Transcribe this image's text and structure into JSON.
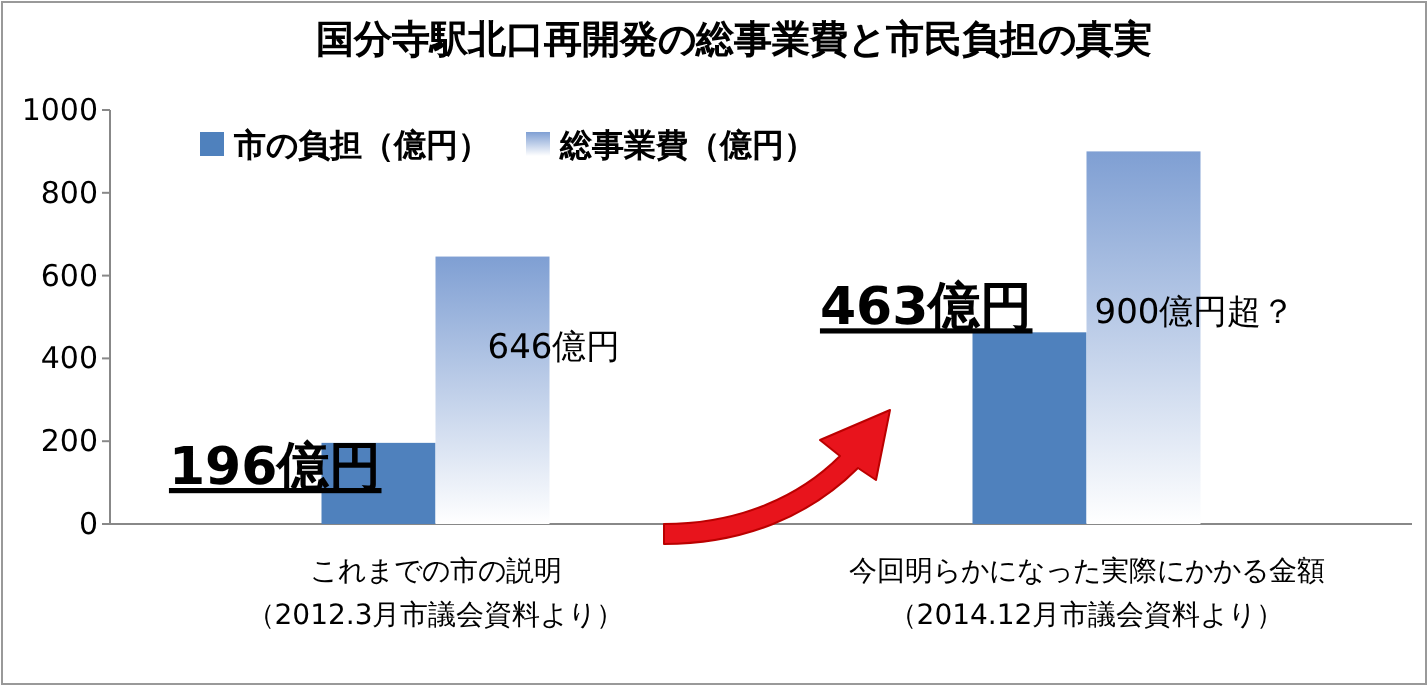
{
  "chart_data": {
    "type": "bar",
    "title": "国分寺駅北口再開発の総事業費と市民負担の真実",
    "categories": [
      "これまでの市の説明（2012.3月市議会資料より）",
      "今回明らかになった実際にかかる金額（2014.12月市議会資料より）"
    ],
    "series": [
      {
        "name": "市の負担（億円）",
        "color": "#4f81bd",
        "values": [
          196,
          463
        ],
        "value_labels": [
          "196億円",
          "463億円"
        ]
      },
      {
        "name": "総事業費（億円）",
        "color": "#7f9fd3",
        "values": [
          646,
          900
        ],
        "value_labels": [
          "646億円",
          "900億円超？"
        ]
      }
    ],
    "ylim": [
      0,
      1000
    ],
    "yticks": [
      0,
      200,
      400,
      600,
      800,
      1000
    ],
    "grid": false,
    "legend": "top left"
  }
}
